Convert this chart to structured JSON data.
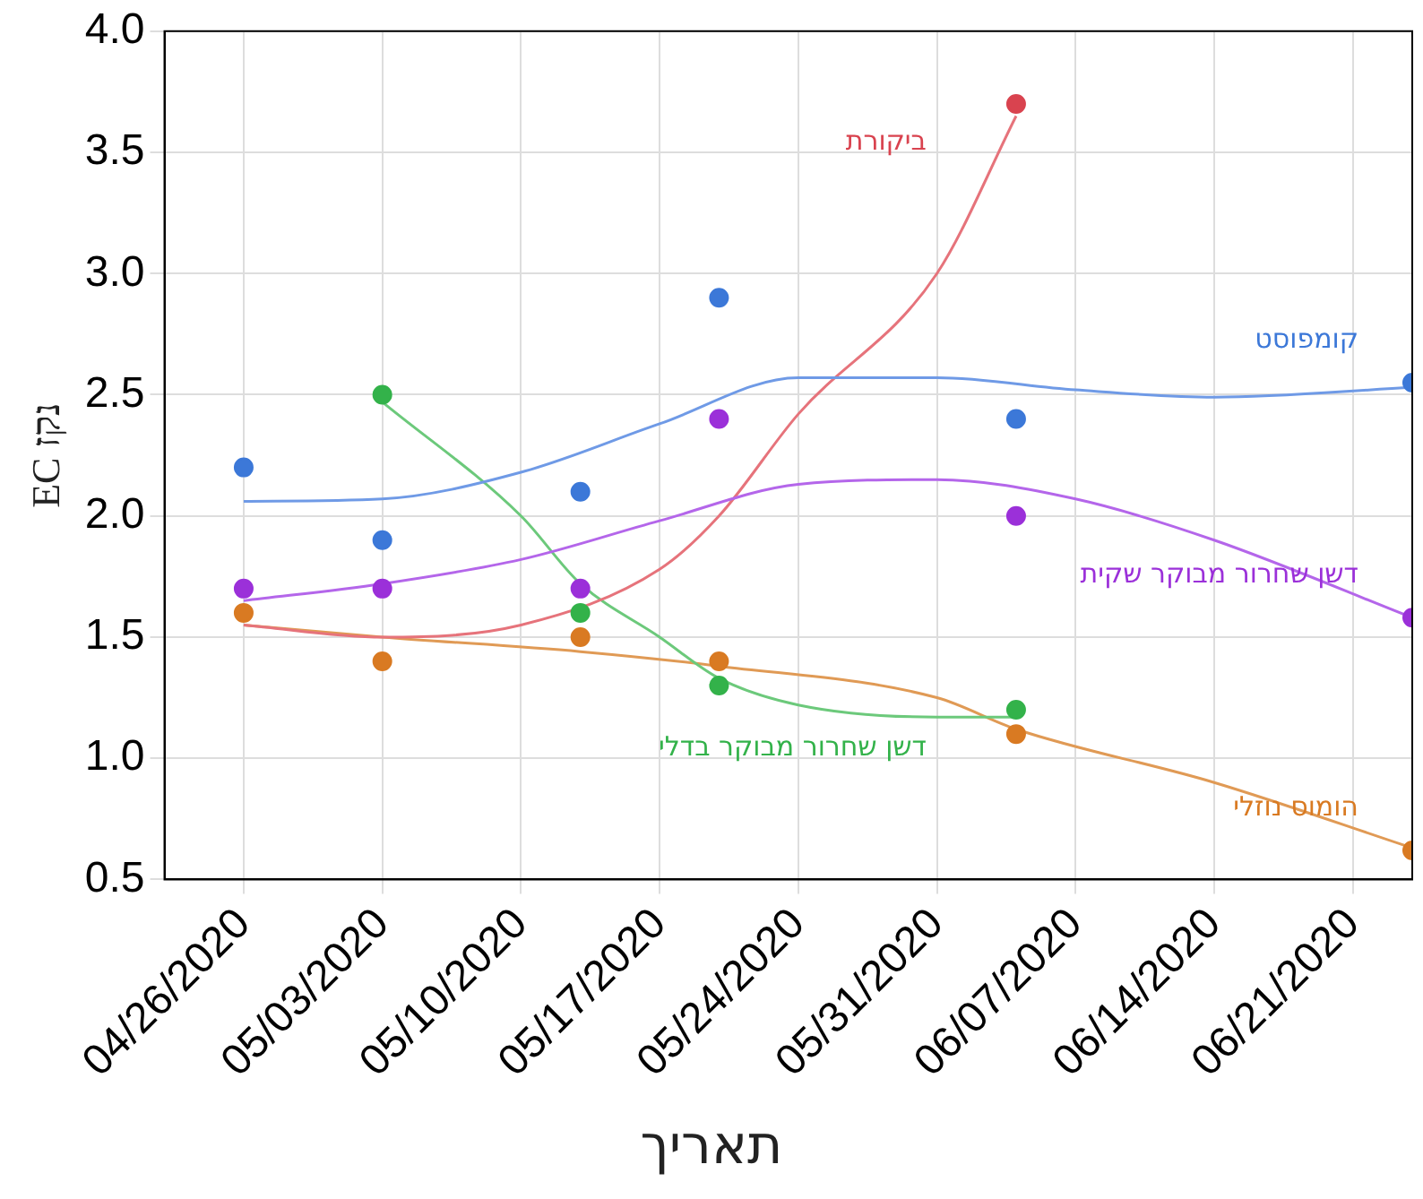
{
  "chart_data": {
    "type": "scatter",
    "xlabel": "תאריך",
    "ylabel": "EC נקז",
    "x": [
      "2020-04-26",
      "2020-05-03",
      "2020-05-13",
      "2020-05-20",
      "2020-06-04",
      "2020-06-24"
    ],
    "series": [
      {
        "name": "קומפוסט",
        "color": "#3c78d8",
        "values": [
          2.2,
          1.9,
          2.1,
          2.9,
          2.4,
          2.55
        ]
      },
      {
        "name": "דשן שחרור מבוקר שקית",
        "color": "#9b30d9",
        "values": [
          1.7,
          1.7,
          1.7,
          2.4,
          2.0,
          1.58
        ]
      },
      {
        "name": "ביקורת",
        "color": "#d9434f",
        "values": [
          null,
          null,
          null,
          null,
          3.7,
          null
        ]
      },
      {
        "name": "דשן שחרור מבוקר בדלי",
        "color": "#33b24a",
        "values": [
          null,
          2.5,
          1.6,
          1.3,
          1.2,
          null
        ]
      },
      {
        "name": "הומוס נוזלי",
        "color": "#d97a22",
        "values": [
          1.6,
          1.4,
          1.5,
          1.4,
          1.1,
          0.62
        ]
      },
      {
        "type": "line",
        "marker": "none",
        "color": "#6f9ae6",
        "x": [
          "2020-04-26",
          "2020-05-03",
          "2020-05-10",
          "2020-05-17",
          "2020-05-24",
          "2020-05-31",
          "2020-06-07",
          "2020-06-14",
          "2020-06-24"
        ],
        "values": [
          2.06,
          2.07,
          2.18,
          2.38,
          2.57,
          2.57,
          2.52,
          2.49,
          2.53
        ]
      },
      {
        "type": "line",
        "marker": "none",
        "color": "#b466ea",
        "x": [
          "2020-04-26",
          "2020-05-03",
          "2020-05-10",
          "2020-05-17",
          "2020-05-24",
          "2020-05-31",
          "2020-06-07",
          "2020-06-14",
          "2020-06-24"
        ],
        "values": [
          1.65,
          1.72,
          1.82,
          1.98,
          2.13,
          2.15,
          2.07,
          1.9,
          1.58
        ]
      },
      {
        "type": "line",
        "marker": "none",
        "color": "#e6737b",
        "x": [
          "2020-04-26",
          "2020-05-03",
          "2020-05-10",
          "2020-05-17",
          "2020-05-20",
          "2020-05-24",
          "2020-05-31",
          "2020-06-04"
        ],
        "values": [
          1.55,
          1.5,
          1.55,
          1.78,
          2.0,
          2.42,
          3.0,
          3.65
        ]
      },
      {
        "type": "line",
        "marker": "none",
        "color": "#6cc97b",
        "x": [
          "2020-05-03",
          "2020-05-10",
          "2020-05-13",
          "2020-05-17",
          "2020-05-20",
          "2020-05-24",
          "2020-05-31",
          "2020-06-04"
        ],
        "values": [
          2.47,
          2.0,
          1.72,
          1.5,
          1.33,
          1.22,
          1.17,
          1.17
        ]
      },
      {
        "type": "line",
        "marker": "none",
        "color": "#e09a55",
        "x": [
          "2020-04-26",
          "2020-05-03",
          "2020-05-13",
          "2020-05-20",
          "2020-05-31",
          "2020-06-04",
          "2020-06-14",
          "2020-06-24"
        ],
        "values": [
          1.55,
          1.5,
          1.44,
          1.38,
          1.25,
          1.12,
          0.9,
          0.63
        ]
      }
    ],
    "xlim": [
      "2020-04-22",
      "2020-06-24"
    ],
    "xticks": [
      {
        "value": "2020-04-26",
        "label": "04/26/2020"
      },
      {
        "value": "2020-05-03",
        "label": "05/03/2020"
      },
      {
        "value": "2020-05-10",
        "label": "05/10/2020"
      },
      {
        "value": "2020-05-17",
        "label": "05/17/2020"
      },
      {
        "value": "2020-05-24",
        "label": "05/24/2020"
      },
      {
        "value": "2020-05-31",
        "label": "05/31/2020"
      },
      {
        "value": "2020-06-07",
        "label": "06/07/2020"
      },
      {
        "value": "2020-06-14",
        "label": "06/14/2020"
      },
      {
        "value": "2020-06-21",
        "label": "06/21/2020"
      }
    ],
    "ylim": [
      0.5,
      4.0
    ],
    "yticks": [
      {
        "value": 0.5,
        "label": "0.5"
      },
      {
        "value": 1,
        "label": "1.0"
      },
      {
        "value": 1.5,
        "label": "1.5"
      },
      {
        "value": 2,
        "label": "2.0"
      },
      {
        "value": 2.5,
        "label": "2.5"
      },
      {
        "value": 3,
        "label": "3.0"
      },
      {
        "value": 3.5,
        "label": "3.5"
      },
      {
        "value": 4,
        "label": "4.0"
      }
    ],
    "grid": true,
    "legend": false,
    "marker": "circle",
    "line_style": "solid"
  }
}
